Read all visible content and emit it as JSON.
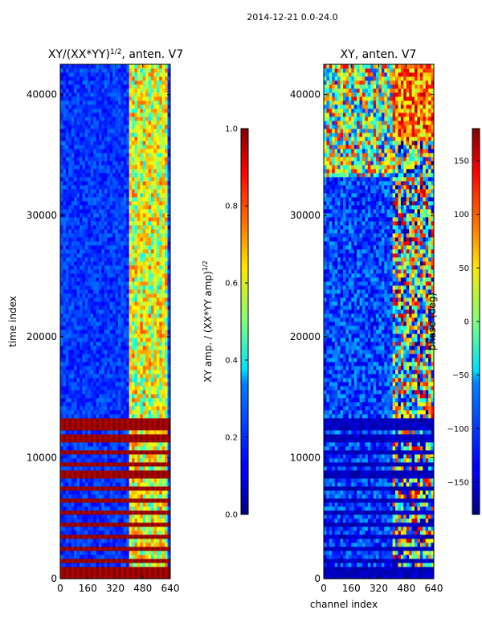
{
  "figure": {
    "suptitle": "2014-12-21 0.0-24.0"
  },
  "chart_data": [
    {
      "type": "heatmap",
      "title": "XY/(XX*YY)^1/2, anten. V7",
      "title_main": "XY/(XX*YY)",
      "title_sup": "1/2",
      "title_tail": ", anten. V7",
      "xlabel": "",
      "ylabel": "time index",
      "xlim": [
        0,
        640
      ],
      "ylim": [
        0,
        42500
      ],
      "xticks": [
        0,
        160,
        320,
        480,
        640
      ],
      "yticks": [
        0,
        10000,
        20000,
        30000,
        40000
      ],
      "colormap": "jet",
      "colorbar": {
        "label_main": "XY amp. / (XX*YY amp)",
        "label_sup": "1/2",
        "range": [
          0.0,
          1.0
        ],
        "ticks": [
          "0.0",
          "0.2",
          "0.4",
          "0.6",
          "0.8",
          "1.0"
        ],
        "tick_values": [
          0.0,
          0.2,
          0.4,
          0.6,
          0.8,
          1.0
        ]
      },
      "background_value": 0.12,
      "flag_value": 1.0,
      "high_channel_band": [
        400,
        610
      ],
      "flagged_time_bands": [
        [
          0,
          700
        ],
        [
          1100,
          1500
        ],
        [
          2100,
          2500
        ],
        [
          3000,
          3500
        ],
        [
          4000,
          4400
        ],
        [
          5000,
          5500
        ],
        [
          6100,
          6600
        ],
        [
          7100,
          7500
        ],
        [
          8100,
          8700
        ],
        [
          9100,
          9500
        ],
        [
          10000,
          10400
        ],
        [
          11000,
          11700
        ],
        [
          12100,
          13100
        ],
        [
          13300,
          13600
        ]
      ]
    },
    {
      "type": "heatmap",
      "title": "XY, anten. V7",
      "xlabel": "channel index",
      "ylabel": "",
      "xlim": [
        0,
        640
      ],
      "ylim": [
        0,
        42500
      ],
      "xticks": [
        0,
        160,
        320,
        480,
        640
      ],
      "yticks": [
        0,
        10000,
        20000,
        30000,
        40000
      ],
      "colormap": "jet",
      "colorbar": {
        "label_main": "phase (deg)",
        "range": [
          -180,
          180
        ],
        "ticks": [
          "150",
          "100",
          "50",
          "0",
          "−50",
          "−100",
          "−150"
        ],
        "tick_values": [
          150,
          100,
          50,
          0,
          -50,
          -100,
          -150
        ]
      },
      "background_value": -150,
      "high_channel_band": [
        400,
        640
      ],
      "flagged_time_bands": [
        [
          0,
          700
        ],
        [
          1100,
          1500
        ],
        [
          2100,
          2500
        ],
        [
          3000,
          3500
        ],
        [
          4000,
          4400
        ],
        [
          5000,
          5500
        ],
        [
          6100,
          6600
        ],
        [
          7100,
          7500
        ],
        [
          8100,
          8700
        ],
        [
          9100,
          9500
        ],
        [
          10000,
          10400
        ],
        [
          11000,
          11700
        ],
        [
          12100,
          13100
        ],
        [
          13300,
          13600
        ]
      ]
    }
  ]
}
